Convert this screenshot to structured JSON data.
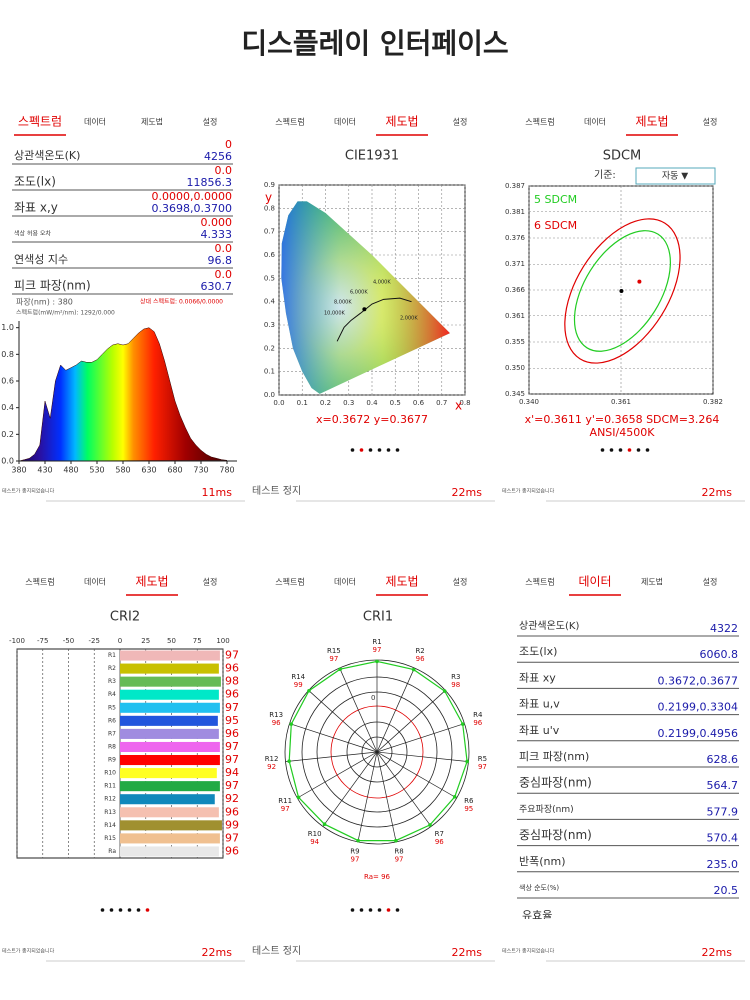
{
  "title": "디스플레이 인터페이스",
  "tabs": [
    "스펙트럼",
    "데이터",
    "제도법",
    "설정"
  ],
  "spectrum": {
    "active_tab": 0,
    "rows": [
      {
        "label": "상관색온도(K)",
        "top": "0",
        "value": "4256"
      },
      {
        "label": "조도(lx)",
        "top": "0.0",
        "value": "11856.3"
      },
      {
        "label": "좌표 x,y",
        "top": "0.0000,0.0000",
        "value": "0.3698,0.3700"
      },
      {
        "label": "색상 허용 오차",
        "top": "0.000",
        "value": "4.333"
      },
      {
        "label": "연색성 지수",
        "top": "0.0",
        "value": "96.8"
      },
      {
        "label": "피크 파장(nm)",
        "top": "0.0",
        "value": "630.7"
      }
    ],
    "wavelength": "파장(nm) : 380",
    "relative": "상대 스펙트럼: 0.0066/0.0000",
    "spectrum_label": "스펙트럼(mW/m²/nm): 1292/0.000",
    "chart": {
      "type": "area",
      "x": [
        380,
        390,
        400,
        410,
        420,
        430,
        440,
        450,
        460,
        470,
        480,
        490,
        500,
        510,
        520,
        530,
        540,
        550,
        560,
        570,
        580,
        590,
        600,
        610,
        620,
        630,
        640,
        650,
        660,
        670,
        680,
        690,
        700,
        710,
        720,
        730,
        740,
        750,
        760,
        770,
        780
      ],
      "values": [
        0.0,
        0.01,
        0.02,
        0.05,
        0.12,
        0.45,
        0.32,
        0.6,
        0.72,
        0.68,
        0.7,
        0.72,
        0.75,
        0.74,
        0.74,
        0.76,
        0.8,
        0.84,
        0.87,
        0.88,
        0.87,
        0.88,
        0.92,
        0.96,
        0.99,
        1.0,
        0.97,
        0.88,
        0.75,
        0.6,
        0.45,
        0.34,
        0.25,
        0.17,
        0.12,
        0.08,
        0.05,
        0.03,
        0.02,
        0.01,
        0.005
      ],
      "xlim": [
        380,
        780
      ],
      "xticks": [
        380,
        430,
        480,
        530,
        580,
        630,
        680,
        730,
        780
      ],
      "ylim": [
        0,
        1.05
      ],
      "yticks": [
        {
          "value": 0,
          "label": "0.0"
        },
        0.2,
        0.4,
        0.6,
        0.8,
        {
          "value": 1,
          "label": "1.0"
        }
      ]
    },
    "footer": {
      "left": "테스트가 종지되었습니다",
      "right": "11ms"
    }
  },
  "cie": {
    "active_tab": 2,
    "title": "CIE1931",
    "x_label": "x",
    "y_label": "y",
    "xlim": [
      0,
      0.8
    ],
    "xticks": [
      {
        "value": 0,
        "label": "0.0"
      },
      0.1,
      0.2,
      0.3,
      0.4,
      0.5,
      0.6,
      0.7,
      0.8
    ],
    "ylim": [
      0,
      0.9
    ],
    "yticks": [
      {
        "value": 0,
        "label": "0.0"
      },
      0.1,
      0.2,
      0.3,
      0.4,
      0.5,
      0.6,
      0.7,
      0.8,
      0.9
    ],
    "cct_labels": [
      "10,000K",
      "8,000K",
      "6,000K",
      "4,000K",
      "2,000K"
    ],
    "point": {
      "x": 0.3672,
      "y": 0.3677
    },
    "readout": "x=0.3672  y=0.3677",
    "pager": {
      "count": 6,
      "active": 1
    },
    "footer": {
      "left": "테스트 정지",
      "right": "22ms"
    }
  },
  "sdcm": {
    "active_tab": 2,
    "title": "SDCM",
    "standard_label": "기준:",
    "standard_value": "자동 ▼",
    "legend": [
      {
        "name": "5 SDCM",
        "color": "#22cc22"
      },
      {
        "name": "6 SDCM",
        "color": "#e00000"
      }
    ],
    "xlim": [
      0.34,
      0.382
    ],
    "xticks": [
      {
        "value": 0.34,
        "label": "0.340"
      },
      {
        "value": 0.361,
        "label": "0.361"
      },
      {
        "value": 0.382,
        "label": "0.382"
      }
    ],
    "ylim": [
      0.345,
      0.387
    ],
    "yticks": [
      {
        "value": 0.387,
        "label": "0.387"
      },
      {
        "value": 0.3818,
        "label": "0.381"
      },
      {
        "value": 0.3765,
        "label": "0.376"
      },
      {
        "value": 0.3712,
        "label": "0.371"
      },
      {
        "value": 0.366,
        "label": "0.366"
      },
      {
        "value": 0.3608,
        "label": "0.361"
      },
      {
        "value": 0.3555,
        "label": "0.355"
      },
      {
        "value": 0.3502,
        "label": "0.350"
      },
      {
        "value": 0.345,
        "label": "0.345"
      }
    ],
    "point": {
      "x": 0.3611,
      "y": 0.3658
    },
    "marker": {
      "x": 0.3652,
      "y": 0.3677,
      "color": "#e00000"
    },
    "readout": "x'=0.3611 y'=0.3658  SDCM=3.264",
    "standard": "ANSI/4500K",
    "pager": {
      "count": 6,
      "active": 3
    },
    "footer": {
      "left": "테스트가 종지되었습니다",
      "right": "22ms"
    }
  },
  "cri2": {
    "active_tab": 2,
    "title": "CRI2",
    "xlim": [
      -100,
      100
    ],
    "xticks": [
      -100,
      -75,
      -50,
      -25,
      0,
      25,
      50,
      75,
      100
    ],
    "categories": [
      "R1",
      "R2",
      "R3",
      "R4",
      "R5",
      "R6",
      "R7",
      "R8",
      "R9",
      "R10",
      "R11",
      "R12",
      "R13",
      "R14",
      "R15",
      "Ra"
    ],
    "values": [
      97,
      96,
      98,
      96,
      97,
      95,
      96,
      97,
      97,
      94,
      97,
      92,
      96,
      99,
      97,
      96
    ],
    "colors": [
      "#f0b8b8",
      "#c8c000",
      "#66bb55",
      "#00e8c8",
      "#22c0f0",
      "#2255dd",
      "#a08ce0",
      "#ee66ee",
      "#ff0000",
      "#ffff22",
      "#22aa44",
      "#1188bb",
      "#f5c0b0",
      "#a09030",
      "#f0c090",
      "#e8e8e8"
    ],
    "pager": {
      "count": 6,
      "active": 5
    },
    "footer": {
      "left": "테스트가 종지되었습니다",
      "right": "22ms"
    }
  },
  "cri1": {
    "active_tab": 2,
    "title": "CRI1",
    "rlim": [
      -100,
      100
    ],
    "rticks": [
      0
    ],
    "categories": [
      "R1",
      "R2",
      "R3",
      "R4",
      "R5",
      "R6",
      "R7",
      "R8",
      "R9",
      "R10",
      "R11",
      "R12",
      "R13",
      "R14",
      "R15"
    ],
    "values": [
      97,
      96,
      98,
      96,
      97,
      95,
      96,
      97,
      97,
      94,
      97,
      92,
      96,
      99,
      97
    ],
    "ra": "Ra= 96",
    "pager": {
      "count": 6,
      "active": 4
    },
    "footer": {
      "left": "테스트 정지",
      "right": "22ms"
    }
  },
  "data": {
    "active_tab": 1,
    "rows": [
      {
        "label": "상관색온도(K)",
        "value": "4322"
      },
      {
        "label": "조도(lx)",
        "value": "6060.8"
      },
      {
        "label": "좌표 xy",
        "value": "0.3672,0.3677"
      },
      {
        "label": "좌표 u,v",
        "value": "0.2199,0.3304"
      },
      {
        "label": "좌표 u'v",
        "value": "0.2199,0.4956"
      },
      {
        "label": "피크 파장(nm)",
        "value": "628.6"
      },
      {
        "label": "중심파장(nm)",
        "value": "564.7"
      },
      {
        "label": "주요파장(nm)",
        "value": "577.9"
      },
      {
        "label": "중심파장(nm)",
        "value": "570.4"
      },
      {
        "label": "반폭(nm)",
        "value": "235.0"
      },
      {
        "label": "색상 순도(%)",
        "value": "20.5"
      }
    ],
    "cut_label": "유효율",
    "footer": {
      "left": "테스트가 종지되었습니다",
      "right": "22ms"
    }
  }
}
